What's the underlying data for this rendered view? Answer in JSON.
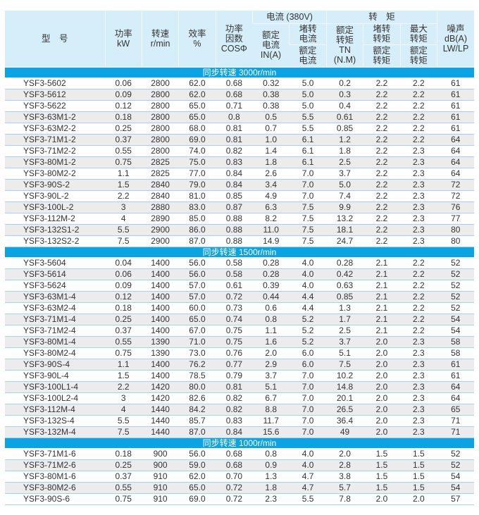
{
  "header": {
    "model": "型　号",
    "power": "功率\nkW",
    "speed": "转速\nr/min",
    "efficiency": "效率\n%",
    "power_factor": "功率\n因数\nCOSΦ",
    "current_group": "电流 (380V)",
    "rated_current": "额定\n电流\nIN(A)",
    "locked_current_top": "堵转\n电流",
    "locked_current_bottom": "额定\n电流",
    "torque_group": "转　矩",
    "rated_torque": "额定\n转矩\nTN\n(N.M)",
    "locked_torque_top": "堵转\n转矩",
    "locked_torque_bottom": "额定\n转矩",
    "max_torque_top": "最大\n转矩",
    "max_torque_bottom": "额定\n转矩",
    "noise": "噪声\ndB(A)\nLW/LP"
  },
  "colors": {
    "header_bg": "#d6eef9",
    "band_bg": "#0aa3e3",
    "alt_row": "#ececec",
    "row_line": "#9fd3ee"
  },
  "sections": [
    {
      "title": "同步转速  3000r/min",
      "rows": [
        [
          "YSF3-5602",
          "0.06",
          "2800",
          "62.0",
          "0.68",
          "0.32",
          "5.0",
          "0.2",
          "2.2",
          "2.2",
          "61"
        ],
        [
          "YSF3-5612",
          "0.09",
          "2800",
          "62.0",
          "0.68",
          "0.38",
          "5.0",
          "0.3",
          "2.2",
          "2.2",
          "61"
        ],
        [
          "YSF3-5622",
          "0.12",
          "2800",
          "65.0",
          "0.71",
          "0.38",
          "5.0",
          "0.4",
          "2.2",
          "2.2",
          "61"
        ],
        [
          "YSF3-63M1-2",
          "0.18",
          "2800",
          "65.0",
          "0.8",
          "0.5",
          "5.5",
          "0.61",
          "2.2",
          "2.2",
          "61"
        ],
        [
          "YSF3-63M2-2",
          "0.25",
          "2800",
          "68.0",
          "0.81",
          "0.7",
          "5.5",
          "0.85",
          "2.2",
          "2.2",
          "61"
        ],
        [
          "YSF3-71M1-2",
          "0.37",
          "2800",
          "69.0",
          "0.81",
          "1.0",
          "6.1",
          "1.2",
          "2.2",
          "2.2",
          "64"
        ],
        [
          "YSF3-71M2-2",
          "0.55",
          "2800",
          "74.0",
          "0.82",
          "1.4",
          "6.1",
          "1.8",
          "2.2",
          "2.3",
          "64"
        ],
        [
          "YSF3-80M1-2",
          "0.75",
          "2825",
          "75.0",
          "0.83",
          "1.8",
          "6.1",
          "2.5",
          "2.2",
          "2.3",
          "64"
        ],
        [
          "YSF3-80M2-2",
          "1.1",
          "2825",
          "77.0",
          "0.84",
          "2.6",
          "7.0",
          "3.7",
          "2.2",
          "2.3",
          "64"
        ],
        [
          "YSF3-90S-2",
          "1.5",
          "2840",
          "79.0",
          "0.84",
          "3.4",
          "7.0",
          "5.0",
          "2.2",
          "2.3",
          "72"
        ],
        [
          "YSF3-90L-2",
          "2.2",
          "2840",
          "81.0",
          "0.85",
          "4.9",
          "7.0",
          "7.4",
          "2.2",
          "2.3",
          "72"
        ],
        [
          "YSF3-100L-2",
          "3",
          "2880",
          "83.0",
          "0.87",
          "6.3",
          "7.5",
          "9.9",
          "2.2",
          "2.3",
          "76"
        ],
        [
          "YSF3-112M-2",
          "4",
          "2890",
          "85.0",
          "0.88",
          "8.2",
          "7.5",
          "13.2",
          "2.2",
          "2.3",
          "77"
        ],
        [
          "YSF3-132S1-2",
          "5.5",
          "2900",
          "86.0",
          "0.88",
          "11.0",
          "7.5",
          "18.1",
          "2.2",
          "2.3",
          "80"
        ],
        [
          "YSF3-132S2-2",
          "7.5",
          "2900",
          "87.0",
          "0.88",
          "14.9",
          "7.5",
          "24.7",
          "2.2",
          "2.3",
          "80"
        ]
      ]
    },
    {
      "title": "同步转速  1500r/min",
      "rows": [
        [
          "YSF3-5604",
          "0.04",
          "1400",
          "56.0",
          "0.58",
          "0.28",
          "4.0",
          "0.28",
          "2.1",
          "2.2",
          "52"
        ],
        [
          "YSF3-5614",
          "0.06",
          "1400",
          "56.0",
          "0.58",
          "0.28",
          "4.0",
          "0.42",
          "2.1",
          "2.2",
          "52"
        ],
        [
          "YSF3-5624",
          "0.09",
          "1400",
          "57.0",
          "0.61",
          "0.39",
          "4.0",
          "0.63",
          "2.1",
          "2.2",
          "52"
        ],
        [
          "YSF3-63M1-4",
          "0.12",
          "1400",
          "57.0",
          "0.72",
          "0.44",
          "4.4",
          "0.85",
          "2.1",
          "2.2",
          "52"
        ],
        [
          "YSF3-63M2-4",
          "0.18",
          "1400",
          "60.0",
          "0.73",
          "0.6",
          "4.4",
          "1.3",
          "2.1",
          "2.2",
          "52"
        ],
        [
          "YSF3-71M1-4",
          "0.25",
          "1400",
          "65.0",
          "0.74",
          "0.8",
          "5.2",
          "1.7",
          "2.1",
          "2.2",
          "54"
        ],
        [
          "YSF3-71M2-4",
          "0.37",
          "1400",
          "67.0",
          "0.75",
          "1.1",
          "5.2",
          "2.5",
          "2.1",
          "2.2",
          "54"
        ],
        [
          "YSF3-80M1-4",
          "0.55",
          "1390",
          "71.0",
          "0.75",
          "1.6",
          "5.2",
          "3.7",
          "2.0",
          "2.3",
          "58"
        ],
        [
          "YSF3-80M2-4",
          "0.75",
          "1390",
          "73.0",
          "0.76",
          "2.0",
          "6.0",
          "5.1",
          "2.0",
          "2.3",
          "58"
        ],
        [
          "YSF3-90S-4",
          "1.1",
          "1400",
          "76.2",
          "0.77",
          "2.9",
          "6.0",
          "7.5",
          "2.0",
          "2.3",
          "61"
        ],
        [
          "YSF3-90L-4",
          "1.5",
          "1400",
          "78.5",
          "0.79",
          "3.7",
          "7.0",
          "10.2",
          "2.0",
          "2.3",
          "61"
        ],
        [
          "YSF3-100L1-4",
          "2.2",
          "1420",
          "80.0",
          "0.81",
          "5.1",
          "7.0",
          "14.8",
          "2.0",
          "2.3",
          "64"
        ],
        [
          "YSF3-100L2-4",
          "3",
          "1420",
          "82.6",
          "0.82",
          "6.7",
          "7.0",
          "20.1",
          "2.0",
          "2.3",
          "64"
        ],
        [
          "YSF3-112M-4",
          "4",
          "1440",
          "84.2",
          "0.82",
          "8.8",
          "7.0",
          "26.5",
          "2.0",
          "2.3",
          "65"
        ],
        [
          "YSF3-132S-4",
          "5.5",
          "1440",
          "85.7",
          "0.83",
          "11.7",
          "7.0",
          "36.4",
          "2.0",
          "2.3",
          "71"
        ],
        [
          "YSF3-132M-4",
          "7.5",
          "1440",
          "87.0",
          "0.84",
          "15.6",
          "7.0",
          "49",
          "2.0",
          "2.3",
          "71"
        ]
      ]
    },
    {
      "title": "同步转速  1000r/min",
      "rows": [
        [
          "YSF3-71M1-6",
          "0.18",
          "900",
          "56.0",
          "0.68",
          "0.8",
          "4.0",
          "2.0",
          "1.5",
          "1.5",
          "52"
        ],
        [
          "YSF3-71M2-6",
          "0.25",
          "900",
          "59.0",
          "0.68",
          "0.9",
          "4.0",
          "2.8",
          "1.5",
          "1.5",
          "52"
        ],
        [
          "YSF3-80M1-6",
          "0.37",
          "910",
          "62.0",
          "0.70",
          "1.3",
          "4.7",
          "3.8",
          "1.5",
          "1.5",
          "54"
        ],
        [
          "YSF3-80M2-6",
          "0.55",
          "910",
          "65.0",
          "0.72",
          "1.8",
          "4.7",
          "5.7",
          "1.5",
          "1.5",
          "54"
        ],
        [
          "YSF3-90S-6",
          "0.75",
          "910",
          "69.0",
          "0.72",
          "2.3",
          "5.5",
          "7.8",
          "2.0",
          "2.0",
          "57"
        ]
      ]
    }
  ]
}
